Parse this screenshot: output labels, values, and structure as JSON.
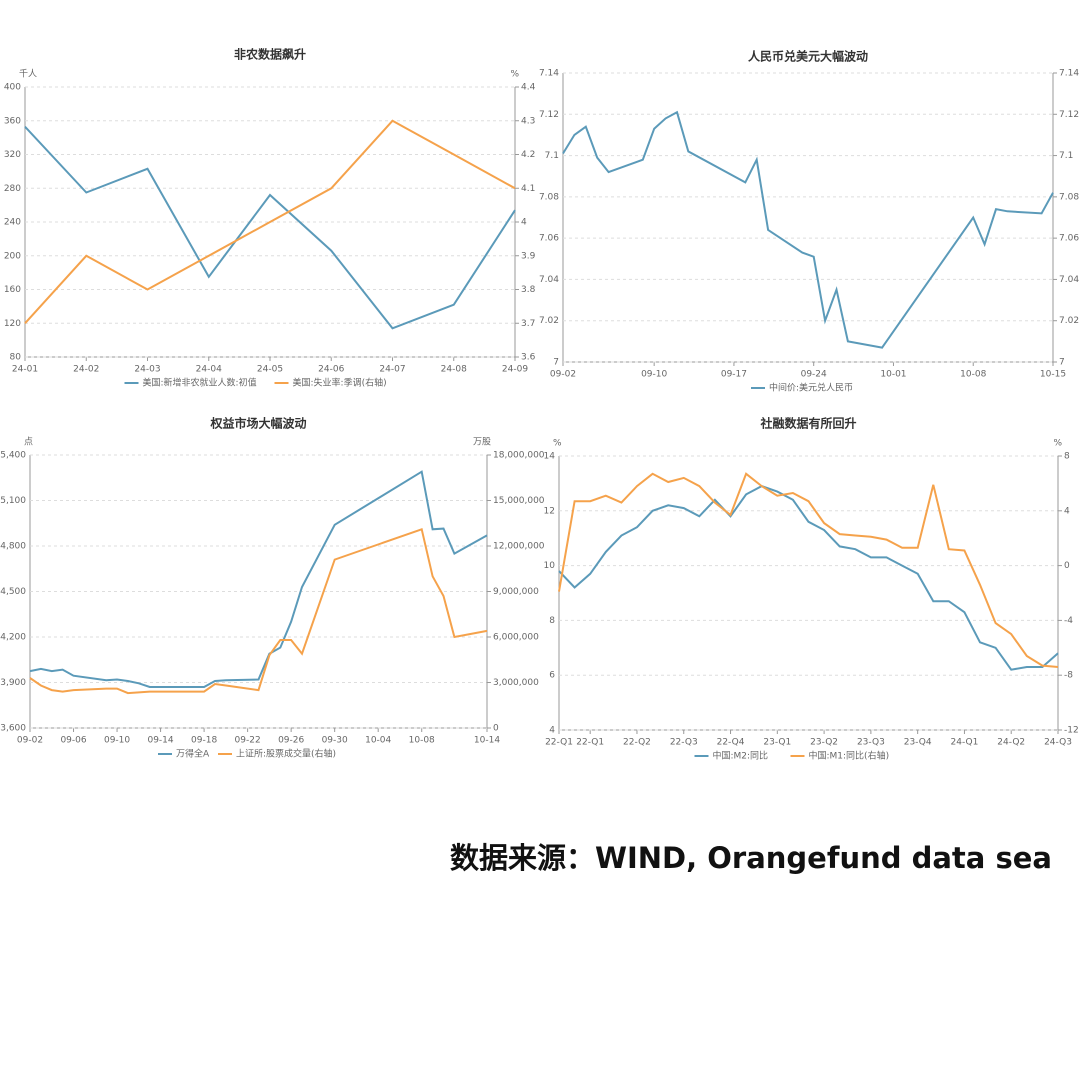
{
  "chart_data": [
    {
      "type": "line",
      "title": "非农数据飙升",
      "ylabel": "千人",
      "y2label": "%",
      "categories": [
        "24-01",
        "24-02",
        "24-03",
        "24-04",
        "24-05",
        "24-06",
        "24-07",
        "24-08",
        "24-09"
      ],
      "ylim": [
        80,
        400
      ],
      "yticks": [
        80,
        120,
        160,
        200,
        240,
        280,
        320,
        360,
        400
      ],
      "y2lim": [
        3.6,
        4.4
      ],
      "y2ticks": [
        3.6,
        3.7,
        3.8,
        3.9,
        4,
        4.1,
        4.2,
        4.3,
        4.4
      ],
      "grid": true,
      "series": [
        {
          "name": "美国:新增非农就业人数:初值",
          "color": "#5b9ab9",
          "values": [
            353,
            275,
            303,
            175,
            272,
            206,
            114,
            142,
            254
          ]
        },
        {
          "name": "美国:失业率:季调(右轴)",
          "color": "#f5a24b",
          "axis": "y2",
          "values": [
            3.7,
            3.9,
            3.8,
            3.9,
            4.0,
            4.1,
            4.3,
            4.2,
            4.1
          ]
        }
      ]
    },
    {
      "type": "line",
      "title": "人民币兑美元大幅波动",
      "x": [
        "09-02",
        "09-03",
        "09-04",
        "09-05",
        "09-06",
        "09-09",
        "09-10",
        "09-11",
        "09-12",
        "09-13",
        "09-18",
        "09-19",
        "09-20",
        "09-23",
        "09-24",
        "09-25",
        "09-26",
        "09-27",
        "09-30",
        "10-08",
        "10-09",
        "10-10",
        "10-11",
        "10-14",
        "10-15"
      ],
      "xticks": [
        "09-02",
        "09-10",
        "09-17",
        "09-24",
        "10-01",
        "10-08",
        "10-15"
      ],
      "ylim": [
        7,
        7.14
      ],
      "yticks": [
        7,
        7.02,
        7.04,
        7.06,
        7.08,
        7.1,
        7.12,
        7.14
      ],
      "y2lim": [
        7,
        7.14
      ],
      "y2ticks": [
        7,
        7.02,
        7.04,
        7.06,
        7.08,
        7.1,
        7.12,
        7.14
      ],
      "grid": true,
      "series": [
        {
          "name": "中间价:美元兑人民币",
          "color": "#5b9ab9",
          "values": [
            7.101,
            7.11,
            7.114,
            7.099,
            7.092,
            7.098,
            7.113,
            7.118,
            7.121,
            7.102,
            7.087,
            7.098,
            7.064,
            7.053,
            7.051,
            7.02,
            7.035,
            7.01,
            7.007,
            7.07,
            7.057,
            7.074,
            7.073,
            7.072,
            7.082
          ]
        }
      ]
    },
    {
      "type": "line",
      "title": "权益市场大幅波动",
      "ylabel": "点",
      "y2label": "万股",
      "x": [
        "09-02",
        "09-03",
        "09-04",
        "09-05",
        "09-06",
        "09-09",
        "09-10",
        "09-11",
        "09-12",
        "09-13",
        "09-18",
        "09-19",
        "09-20",
        "09-23",
        "09-24",
        "09-25",
        "09-26",
        "09-27",
        "09-30",
        "10-08",
        "10-09",
        "10-10",
        "10-11",
        "10-14"
      ],
      "xticks": [
        "09-02",
        "09-06",
        "09-10",
        "09-14",
        "09-18",
        "09-22",
        "09-26",
        "09-30",
        "10-04",
        "10-08",
        "10-14"
      ],
      "ylim": [
        3600,
        5400
      ],
      "yticks": [
        {
          "value": 3600,
          "label": "3,600"
        },
        {
          "value": 3900,
          "label": "3,900"
        },
        {
          "value": 4200,
          "label": "4,200"
        },
        {
          "value": 4500,
          "label": "4,500"
        },
        {
          "value": 4800,
          "label": "4,800"
        },
        {
          "value": 5100,
          "label": "5,100"
        },
        {
          "value": 5400,
          "label": "5,400"
        }
      ],
      "y2lim": [
        0,
        18000000
      ],
      "y2ticks": [
        0,
        {
          "value": 3000000,
          "label": "3,000,000"
        },
        {
          "value": 6000000,
          "label": "6,000,000"
        },
        {
          "value": 9000000,
          "label": "9,000,000"
        },
        {
          "value": 12000000,
          "label": "12,000,000"
        },
        {
          "value": 15000000,
          "label": "15,000,000"
        },
        {
          "value": 18000000,
          "label": "18,000,000"
        }
      ],
      "grid": true,
      "series": [
        {
          "name": "万得全A",
          "color": "#5b9ab9",
          "values": [
            3975,
            3990,
            3975,
            3985,
            3945,
            3915,
            3920,
            3910,
            3895,
            3870,
            3870,
            3910,
            3915,
            3920,
            4090,
            4130,
            4300,
            4530,
            4940,
            5290,
            4910,
            4915,
            4750,
            4870
          ]
        },
        {
          "name": "上证所:股票成交量(右轴)",
          "color": "#f5a24b",
          "axis": "y2",
          "values": [
            3300000,
            2800000,
            2500000,
            2400000,
            2500000,
            2600000,
            2600000,
            2300000,
            2350000,
            2400000,
            2400000,
            2900000,
            2800000,
            2500000,
            4800000,
            5800000,
            5800000,
            4900000,
            11100000,
            13100000,
            10000000,
            8700000,
            6000000,
            6400000
          ]
        }
      ]
    },
    {
      "type": "line",
      "title": "社融数据有所回升",
      "ylabel": "%",
      "y2label": "%",
      "categories": [
        "22-Q1",
        null,
        "22-Q1",
        null,
        null,
        "22-Q2",
        null,
        null,
        "22-Q3",
        null,
        null,
        "22-Q4",
        null,
        null,
        "23-Q1",
        null,
        null,
        "23-Q2",
        null,
        null,
        "23-Q3",
        null,
        null,
        "23-Q4",
        null,
        null,
        "24-Q1",
        null,
        null,
        "24-Q2",
        null,
        null,
        "24-Q3"
      ],
      "ylim": [
        4,
        14
      ],
      "yticks": [
        4,
        6,
        8,
        10,
        12,
        14
      ],
      "y2lim": [
        -12,
        8
      ],
      "y2ticks": [
        -12,
        -8,
        -4,
        0,
        4,
        8
      ],
      "grid": true,
      "series": [
        {
          "name": "中国:M2:同比",
          "color": "#5b9ab9",
          "values": [
            9.8,
            9.2,
            9.7,
            10.5,
            11.1,
            11.4,
            12.0,
            12.2,
            12.1,
            11.8,
            12.4,
            11.8,
            12.6,
            12.9,
            12.7,
            12.4,
            11.6,
            11.3,
            10.7,
            10.6,
            10.3,
            10.3,
            10.0,
            9.7,
            8.7,
            8.7,
            8.3,
            7.2,
            7.0,
            6.2,
            6.3,
            6.3,
            6.8
          ]
        },
        {
          "name": "中国:M1:同比(右轴)",
          "color": "#f5a24b",
          "axis": "y2",
          "values": [
            -1.9,
            4.7,
            4.7,
            5.1,
            4.6,
            5.8,
            6.7,
            6.1,
            6.4,
            5.8,
            4.6,
            3.7,
            6.7,
            5.8,
            5.1,
            5.3,
            4.7,
            3.1,
            2.3,
            2.2,
            2.1,
            1.9,
            1.3,
            1.3,
            5.9,
            1.2,
            1.1,
            -1.4,
            -4.2,
            -5.0,
            -6.6,
            -7.3,
            -7.4
          ]
        }
      ]
    }
  ],
  "source": "数据来源：WIND, Orangefund data sea"
}
